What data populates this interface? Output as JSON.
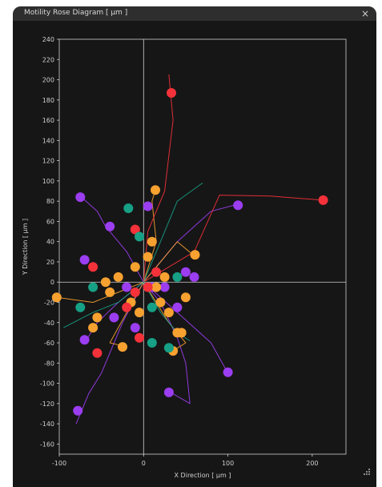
{
  "window": {
    "title": "Motility Rose Diagram [ μm ]",
    "close_symbol": "×"
  },
  "colors": {
    "background": "#161616",
    "axes": "#d0d0d0",
    "purple": "#9b3df0",
    "orange": "#f7a130",
    "red": "#f5313a",
    "teal": "#16a085"
  },
  "chart_data": {
    "type": "scatter",
    "xlabel": "X Direction [ μm ]",
    "ylabel": "Y Direction [ μm ]",
    "xlim": [
      -100,
      240
    ],
    "ylim": [
      -170,
      240
    ],
    "xticks": [
      -100,
      0,
      100,
      200
    ],
    "yticks": [
      240,
      220,
      200,
      180,
      160,
      140,
      120,
      100,
      80,
      60,
      40,
      20,
      0,
      -20,
      -40,
      -60,
      -80,
      -100,
      -120,
      -140,
      -160
    ],
    "grid": false,
    "series": [
      {
        "color": "purple",
        "tracks": [
          [
            [
              0,
              0
            ],
            [
              -20,
              30
            ],
            [
              -45,
              55
            ],
            [
              -55,
              70
            ],
            [
              -75,
              85
            ]
          ],
          [
            [
              0,
              0
            ],
            [
              20,
              -20
            ],
            [
              40,
              -55
            ],
            [
              50,
              -80
            ],
            [
              55,
              -120
            ],
            [
              30,
              -108
            ]
          ],
          [
            [
              0,
              0
            ],
            [
              -25,
              -40
            ],
            [
              -50,
              -90
            ],
            [
              -65,
              -110
            ],
            [
              -80,
              -140
            ]
          ],
          [
            [
              0,
              0
            ],
            [
              40,
              40
            ],
            [
              80,
              70
            ],
            [
              112,
              77
            ]
          ],
          [
            [
              0,
              0
            ],
            [
              40,
              -30
            ],
            [
              80,
              -60
            ],
            [
              100,
              -90
            ]
          ],
          [
            [
              0,
              0
            ],
            [
              -30,
              -20
            ],
            [
              -55,
              -40
            ],
            [
              -70,
              -60
            ]
          ]
        ],
        "endpoints": [
          [
            -75,
            84
          ],
          [
            112,
            76
          ],
          [
            100,
            -89
          ],
          [
            30,
            -109
          ],
          [
            -78,
            -127
          ],
          [
            -70,
            -57
          ],
          [
            -40,
            55
          ],
          [
            5,
            75
          ],
          [
            60,
            5
          ],
          [
            -35,
            -35
          ],
          [
            25,
            -5
          ],
          [
            -70,
            22
          ],
          [
            -20,
            -5
          ],
          [
            40,
            -25
          ],
          [
            10,
            -5
          ],
          [
            50,
            10
          ],
          [
            -10,
            -45
          ]
        ]
      },
      {
        "color": "orange",
        "tracks": [
          [
            [
              0,
              0
            ],
            [
              -30,
              -10
            ],
            [
              -60,
              -20
            ],
            [
              -103,
              -15
            ]
          ],
          [
            [
              0,
              0
            ],
            [
              20,
              20
            ],
            [
              40,
              40
            ],
            [
              60,
              26
            ]
          ],
          [
            [
              0,
              0
            ],
            [
              15,
              40
            ],
            [
              10,
              80
            ],
            [
              14,
              91
            ]
          ],
          [
            [
              0,
              0
            ],
            [
              30,
              -40
            ],
            [
              50,
              -60
            ],
            [
              35,
              -68
            ]
          ],
          [
            [
              0,
              0
            ],
            [
              -20,
              -30
            ],
            [
              -40,
              -60
            ],
            [
              -25,
              -63
            ]
          ]
        ],
        "endpoints": [
          [
            14,
            91
          ],
          [
            -103,
            -15
          ],
          [
            61,
            27
          ],
          [
            35,
            -68
          ],
          [
            -25,
            -64
          ],
          [
            10,
            40
          ],
          [
            -55,
            -35
          ],
          [
            -40,
            -10
          ],
          [
            -15,
            -20
          ],
          [
            20,
            -20
          ],
          [
            30,
            -30
          ],
          [
            -60,
            -45
          ],
          [
            50,
            -15
          ],
          [
            -10,
            15
          ],
          [
            15,
            -5
          ],
          [
            -30,
            5
          ],
          [
            25,
            5
          ],
          [
            40,
            -50
          ],
          [
            -5,
            -30
          ],
          [
            5,
            25
          ],
          [
            -45,
            0
          ],
          [
            45,
            -50
          ]
        ]
      },
      {
        "color": "red",
        "tracks": [
          [
            [
              0,
              0
            ],
            [
              5,
              50
            ],
            [
              25,
              90
            ],
            [
              35,
              160
            ],
            [
              30,
              205
            ],
            [
              32,
              187
            ]
          ],
          [
            [
              0,
              0
            ],
            [
              60,
              30
            ],
            [
              90,
              86
            ],
            [
              150,
              85
            ],
            [
              213,
              81
            ]
          ]
        ],
        "endpoints": [
          [
            33,
            187
          ],
          [
            213,
            81
          ],
          [
            -55,
            -70
          ],
          [
            -10,
            -10
          ],
          [
            -60,
            15
          ],
          [
            -10,
            52
          ],
          [
            5,
            -5
          ],
          [
            -20,
            -25
          ],
          [
            15,
            10
          ],
          [
            -5,
            -55
          ]
        ]
      },
      {
        "color": "teal",
        "tracks": [
          [
            [
              0,
              0
            ],
            [
              -30,
              -20
            ],
            [
              -60,
              -30
            ],
            [
              -95,
              -45
            ]
          ],
          [
            [
              0,
              0
            ],
            [
              20,
              40
            ],
            [
              40,
              80
            ],
            [
              70,
              98
            ]
          ],
          [
            [
              0,
              0
            ],
            [
              20,
              -30
            ],
            [
              40,
              -50
            ],
            [
              55,
              -58
            ]
          ]
        ],
        "endpoints": [
          [
            -18,
            73
          ],
          [
            -75,
            -25
          ],
          [
            40,
            5
          ],
          [
            -60,
            -5
          ],
          [
            10,
            -60
          ],
          [
            30,
            -65
          ],
          [
            10,
            -25
          ],
          [
            -5,
            45
          ]
        ]
      }
    ]
  },
  "status": {
    "resize_grip": "resize-grip"
  }
}
